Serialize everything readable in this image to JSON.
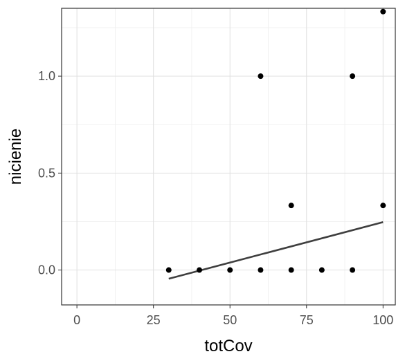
{
  "chart_data": {
    "type": "scatter",
    "title": "",
    "xlabel": "totCov",
    "ylabel": "nicienie",
    "xlim": [
      -5,
      104
    ],
    "ylim": [
      -0.18,
      1.35
    ],
    "x_ticks": [
      0,
      25,
      50,
      75,
      100
    ],
    "x_tick_labels": [
      "0",
      "25",
      "50",
      "75",
      "100"
    ],
    "y_ticks": [
      0.0,
      0.5,
      1.0
    ],
    "y_tick_labels": [
      "0.0",
      "0.5",
      "1.0"
    ],
    "grid": true,
    "legend": "none",
    "points": [
      {
        "x": 30,
        "y": 0.0
      },
      {
        "x": 40,
        "y": 0.0
      },
      {
        "x": 50,
        "y": 0.0
      },
      {
        "x": 60,
        "y": 0.0
      },
      {
        "x": 60,
        "y": 1.0
      },
      {
        "x": 70,
        "y": 0.0
      },
      {
        "x": 70,
        "y": 0.333
      },
      {
        "x": 80,
        "y": 0.0
      },
      {
        "x": 90,
        "y": 0.0
      },
      {
        "x": 90,
        "y": 1.0
      },
      {
        "x": 100,
        "y": 0.333
      },
      {
        "x": 100,
        "y": 1.333
      }
    ],
    "fit_line": {
      "x": [
        30,
        100
      ],
      "y": [
        -0.045,
        0.247
      ]
    },
    "colors": {
      "points": "#000000",
      "line": "#3f3f3f",
      "grid": "#e0e0e0",
      "border": "#333333"
    }
  }
}
